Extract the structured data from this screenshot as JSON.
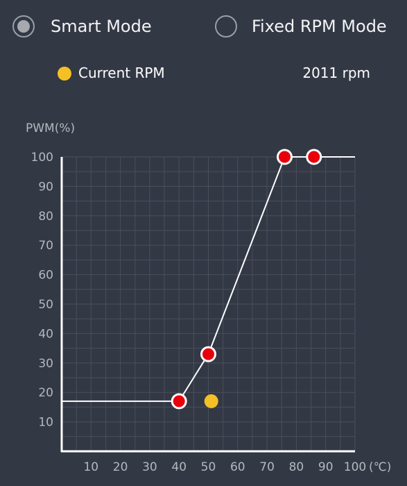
{
  "mode_selector": {
    "smart_label": "Smart Mode",
    "fixed_label": "Fixed RPM Mode",
    "selected": "smart"
  },
  "current_rpm": {
    "label": "Current RPM",
    "value_text": "2011 rpm",
    "dot_color": "#f5c025"
  },
  "colors": {
    "background": "#333845",
    "grid": "#4a4f5b",
    "axis": "#ffffff",
    "curve": "#ffffff",
    "control_point_fill": "#e8000b",
    "control_point_stroke": "#ffffff",
    "current_point": "#f5c025"
  },
  "chart_data": {
    "type": "line",
    "ylabel": "PWM(%)",
    "xlabel": "(℃)",
    "x_ticks": [
      "10",
      "20",
      "30",
      "40",
      "50",
      "60",
      "70",
      "80",
      "90",
      "100"
    ],
    "y_ticks": [
      "10",
      "20",
      "30",
      "40",
      "50",
      "60",
      "70",
      "80",
      "90",
      "100"
    ],
    "xlim": [
      0,
      100
    ],
    "ylim": [
      0,
      100
    ],
    "grid": true,
    "curve_points": [
      {
        "x": 0,
        "y": 17
      },
      {
        "x": 40,
        "y": 17
      },
      {
        "x": 50,
        "y": 33
      },
      {
        "x": 76,
        "y": 100
      },
      {
        "x": 86,
        "y": 100
      },
      {
        "x": 100,
        "y": 100
      }
    ],
    "control_points": [
      {
        "x": 40,
        "y": 17
      },
      {
        "x": 50,
        "y": 33
      },
      {
        "x": 76,
        "y": 100
      },
      {
        "x": 86,
        "y": 100
      }
    ],
    "current_point": {
      "x": 51,
      "y": 17
    }
  }
}
